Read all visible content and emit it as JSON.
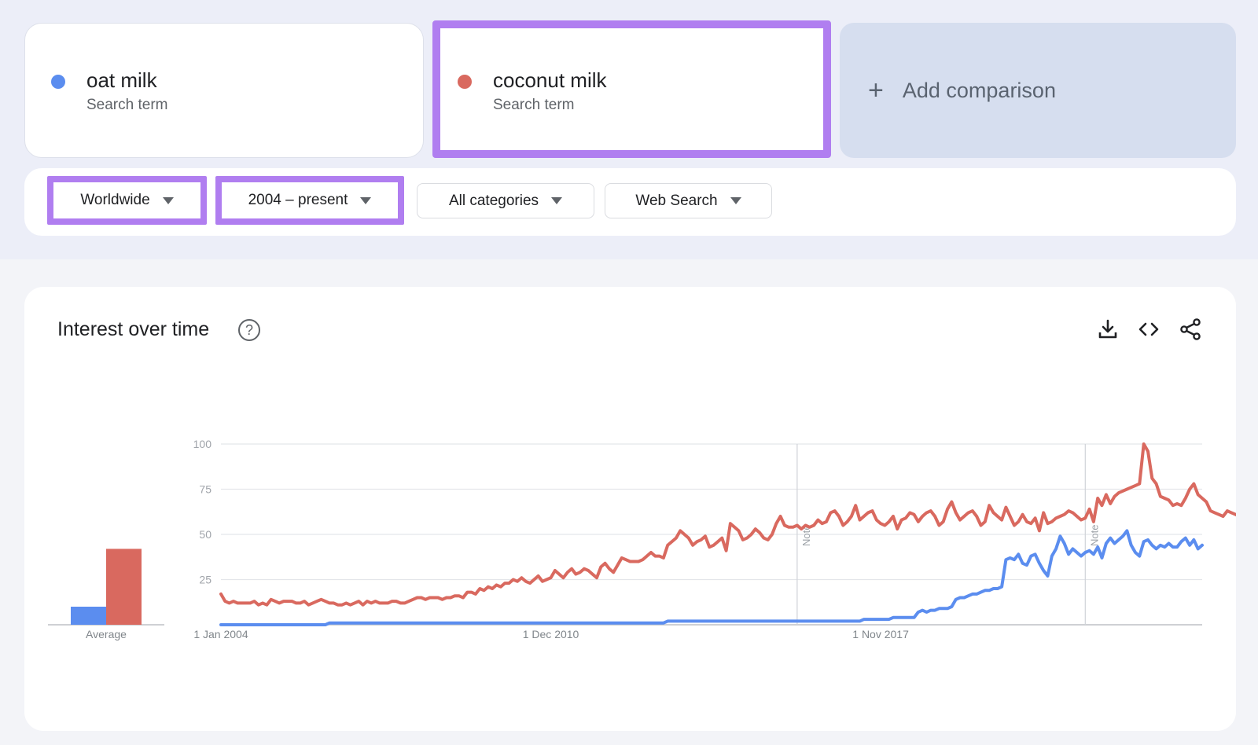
{
  "terms": [
    {
      "name": "oat milk",
      "subtitle": "Search term",
      "color": "#5b8def"
    },
    {
      "name": "coconut milk",
      "subtitle": "Search term",
      "color": "#d9695f"
    }
  ],
  "add_comparison": {
    "icon": "plus-icon",
    "label": "Add comparison"
  },
  "filters": {
    "region": "Worldwide",
    "time_range": "2004 – present",
    "category": "All categories",
    "property": "Web Search"
  },
  "highlight_color": "#b07ef0",
  "chart_panel": {
    "title": "Interest over time",
    "icons": [
      "help-icon",
      "download-icon",
      "embed-code-icon",
      "share-icon"
    ]
  },
  "chart_data": {
    "type": "line",
    "y_ticks": [
      "100",
      "75",
      "50",
      "25"
    ],
    "ylim": [
      0,
      100
    ],
    "x_tick_labels": [
      "1 Jan 2004",
      "1 Dec 2010",
      "1 Nov 2017"
    ],
    "notes": [
      "Note",
      "Note"
    ],
    "average_label": "Average",
    "average": [
      {
        "name": "oat milk",
        "value": 10
      },
      {
        "name": "coconut milk",
        "value": 42
      }
    ],
    "series": [
      {
        "name": "oat milk",
        "color": "#5b8def",
        "values": [
          0,
          0,
          0,
          0,
          0,
          0,
          0,
          0,
          0,
          0,
          0,
          0,
          0,
          0,
          0,
          0,
          0,
          0,
          0,
          0,
          0,
          0,
          0,
          0,
          0,
          0,
          1,
          1,
          1,
          1,
          1,
          1,
          1,
          1,
          1,
          1,
          1,
          1,
          1,
          1,
          1,
          1,
          1,
          1,
          1,
          1,
          1,
          1,
          1,
          1,
          1,
          1,
          1,
          1,
          1,
          1,
          1,
          1,
          1,
          1,
          1,
          1,
          1,
          1,
          1,
          1,
          1,
          1,
          1,
          1,
          1,
          1,
          1,
          1,
          1,
          1,
          1,
          1,
          1,
          1,
          1,
          1,
          1,
          1,
          1,
          1,
          1,
          1,
          1,
          1,
          1,
          1,
          1,
          1,
          1,
          1,
          1,
          1,
          1,
          1,
          1,
          1,
          1,
          1,
          1,
          1,
          1,
          2,
          2,
          2,
          2,
          2,
          2,
          2,
          2,
          2,
          2,
          2,
          2,
          2,
          2,
          2,
          2,
          2,
          2,
          2,
          2,
          2,
          2,
          2,
          2,
          2,
          2,
          2,
          2,
          2,
          2,
          2,
          2,
          2,
          2,
          2,
          2,
          2,
          2,
          2,
          2,
          2,
          2,
          2,
          2,
          2,
          2,
          2,
          3,
          3,
          3,
          3,
          3,
          3,
          3,
          4,
          4,
          4,
          4,
          4,
          4,
          7,
          8,
          7,
          8,
          8,
          9,
          9,
          9,
          10,
          14,
          15,
          15,
          16,
          17,
          17,
          18,
          19,
          19,
          20,
          20,
          21,
          36,
          37,
          36,
          39,
          34,
          33,
          38,
          39,
          34,
          30,
          27,
          38,
          42,
          49,
          45,
          39,
          42,
          40,
          38,
          40,
          41,
          39,
          43,
          37,
          45,
          48,
          45,
          47,
          49,
          52,
          44,
          40,
          38,
          46,
          47,
          44,
          42,
          44,
          43,
          45,
          43,
          43,
          46,
          48,
          44,
          47,
          42,
          44
        ]
      },
      {
        "name": "coconut milk",
        "color": "#d9695f",
        "values": [
          17,
          13,
          12,
          13,
          12,
          12,
          12,
          12,
          13,
          11,
          12,
          11,
          14,
          13,
          12,
          13,
          13,
          13,
          12,
          12,
          13,
          11,
          12,
          13,
          14,
          13,
          12,
          12,
          11,
          11,
          12,
          11,
          12,
          13,
          11,
          13,
          12,
          13,
          12,
          12,
          12,
          13,
          13,
          12,
          12,
          13,
          14,
          15,
          15,
          14,
          15,
          15,
          15,
          14,
          15,
          15,
          16,
          16,
          15,
          18,
          18,
          17,
          20,
          19,
          21,
          20,
          22,
          21,
          23,
          23,
          25,
          24,
          26,
          24,
          23,
          25,
          27,
          24,
          25,
          26,
          30,
          28,
          26,
          29,
          31,
          28,
          29,
          31,
          30,
          28,
          26,
          32,
          34,
          31,
          29,
          33,
          37,
          36,
          35,
          35,
          35,
          36,
          38,
          40,
          38,
          38,
          37,
          44,
          46,
          48,
          52,
          50,
          48,
          44,
          46,
          47,
          49,
          43,
          44,
          46,
          48,
          41,
          56,
          54,
          52,
          47,
          48,
          50,
          53,
          51,
          48,
          47,
          50,
          56,
          60,
          55,
          54,
          54,
          55,
          53,
          55,
          54,
          55,
          58,
          56,
          57,
          62,
          63,
          60,
          55,
          57,
          60,
          66,
          58,
          60,
          62,
          63,
          58,
          56,
          55,
          57,
          60,
          53,
          58,
          59,
          62,
          61,
          57,
          60,
          62,
          63,
          60,
          55,
          57,
          64,
          68,
          62,
          58,
          60,
          62,
          63,
          60,
          55,
          57,
          66,
          62,
          60,
          58,
          65,
          60,
          55,
          57,
          61,
          57,
          56,
          59,
          52,
          62,
          56,
          57,
          59,
          60,
          61,
          63,
          62,
          60,
          58,
          59,
          64,
          57,
          70,
          66,
          72,
          67,
          71,
          73,
          74,
          75,
          76,
          77,
          78,
          100,
          96,
          81,
          78,
          71,
          70,
          69,
          66,
          67,
          66,
          70,
          75,
          78,
          72,
          70,
          68,
          63,
          62,
          61,
          60,
          63,
          62,
          61,
          60,
          63,
          62,
          60,
          64,
          60,
          72,
          71,
          62,
          60,
          63,
          62,
          61,
          60,
          64,
          62,
          61,
          66,
          62,
          63,
          69,
          64,
          60,
          62
        ]
      }
    ]
  }
}
